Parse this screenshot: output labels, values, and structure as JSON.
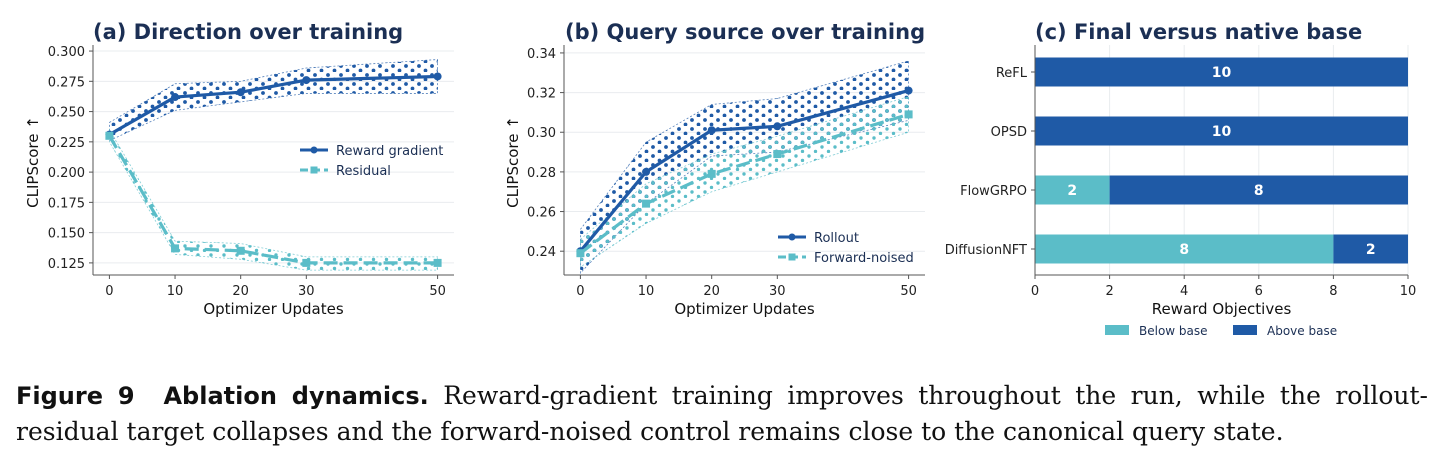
{
  "colors": {
    "dark_blue": "#1f5aa6",
    "light_teal": "#5bbdc8",
    "title_navy": "#1b2f54",
    "grid": "#e9ecef",
    "axis": "#555555"
  },
  "chart_data": [
    {
      "type": "line",
      "title": "(a) Direction over training",
      "xlabel": "Optimizer Updates",
      "ylabel": "CLIPScore ↑",
      "x": [
        0,
        10,
        20,
        30,
        50
      ],
      "xticks": [
        "0",
        "10",
        "20",
        "30",
        "50"
      ],
      "xlim": [
        -2.5,
        52.5
      ],
      "ylim": [
        0.115,
        0.305
      ],
      "yticks": [
        "0.125",
        "0.150",
        "0.175",
        "0.200",
        "0.225",
        "0.250",
        "0.275",
        "0.300"
      ],
      "grid": "horizontal",
      "legend_position": "center-right",
      "series": [
        {
          "name": "Reward gradient",
          "color": "#1f5aa6",
          "marker": "circle",
          "dash": "solid",
          "values": [
            0.231,
            0.262,
            0.266,
            0.276,
            0.279
          ],
          "band_low": [
            0.226,
            0.251,
            0.258,
            0.265,
            0.265
          ],
          "band_high": [
            0.241,
            0.273,
            0.275,
            0.286,
            0.293
          ]
        },
        {
          "name": "Residual",
          "color": "#5bbdc8",
          "marker": "square",
          "dash": "dashed",
          "values": [
            0.23,
            0.137,
            0.135,
            0.125,
            0.125
          ],
          "band_low": [
            0.225,
            0.132,
            0.128,
            0.119,
            0.119
          ],
          "band_high": [
            0.235,
            0.143,
            0.141,
            0.13,
            0.13
          ]
        }
      ]
    },
    {
      "type": "line",
      "title": "(b) Query source over training",
      "xlabel": "Optimizer Updates",
      "ylabel": "CLIPScore ↑",
      "x": [
        0,
        10,
        20,
        30,
        50
      ],
      "xticks": [
        "0",
        "10",
        "20",
        "30",
        "50"
      ],
      "xlim": [
        -2.5,
        52.5
      ],
      "ylim": [
        0.228,
        0.344
      ],
      "yticks": [
        "0.24",
        "0.26",
        "0.28",
        "0.30",
        "0.32",
        "0.34"
      ],
      "grid": "horizontal",
      "legend_position": "lower-right",
      "series": [
        {
          "name": "Rollout",
          "color": "#1f5aa6",
          "marker": "circle",
          "dash": "solid",
          "values": [
            0.24,
            0.28,
            0.301,
            0.303,
            0.321
          ],
          "band_low": [
            0.229,
            0.264,
            0.288,
            0.29,
            0.306
          ],
          "band_high": [
            0.251,
            0.295,
            0.314,
            0.317,
            0.336
          ]
        },
        {
          "name": "Forward-noised",
          "color": "#5bbdc8",
          "marker": "square",
          "dash": "dashed",
          "values": [
            0.239,
            0.264,
            0.279,
            0.289,
            0.309
          ],
          "band_low": [
            0.232,
            0.254,
            0.27,
            0.28,
            0.3
          ],
          "band_high": [
            0.246,
            0.274,
            0.289,
            0.298,
            0.318
          ]
        }
      ]
    },
    {
      "type": "bar",
      "orientation": "horizontal",
      "stacked": true,
      "title": "(c) Final versus native base",
      "xlabel": "Reward Objectives",
      "ylabel": "",
      "categories": [
        "ReFL",
        "OPSD",
        "FlowGRPO",
        "DiffusionNFT"
      ],
      "xlim": [
        0,
        10
      ],
      "xticks": [
        "0",
        "2",
        "4",
        "6",
        "8",
        "10"
      ],
      "grid": "vertical",
      "legend_position": "bottom-center",
      "series": [
        {
          "name": "Below base",
          "color": "#5bbdc8",
          "values": [
            0,
            0,
            2,
            8
          ]
        },
        {
          "name": "Above base",
          "color": "#1f5aa6",
          "values": [
            10,
            10,
            8,
            2
          ]
        }
      ]
    }
  ],
  "caption": {
    "label": "Figure 9",
    "title": "Ablation dynamics.",
    "text": "Reward-gradient training improves throughout the run, while the rollout-residual target collapses and the forward-noised control remains close to the canonical query state."
  }
}
